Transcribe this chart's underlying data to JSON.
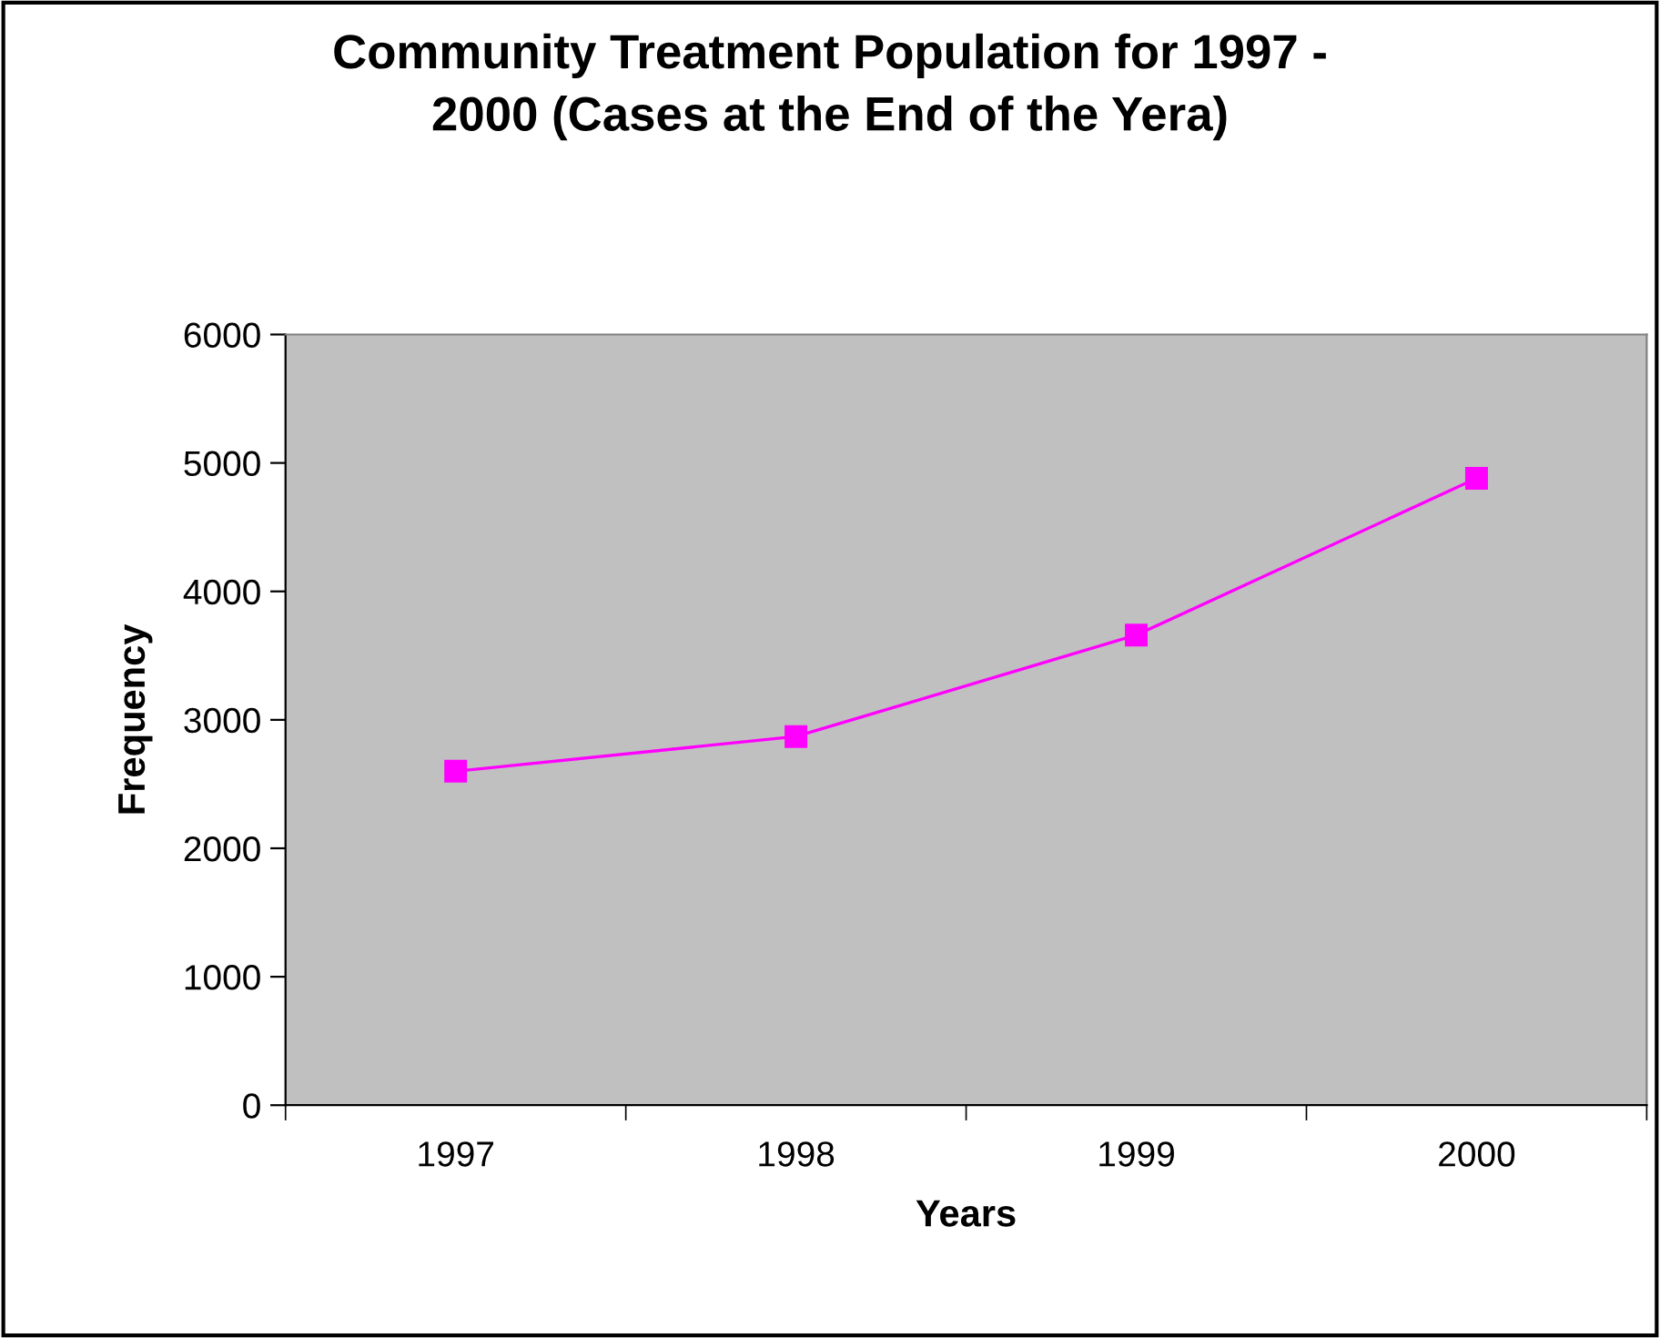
{
  "chart_data": {
    "type": "line",
    "title": "Community Treatment Population for 1997 -\n2000 (Cases at the End of the Yera)",
    "xlabel": "Years",
    "ylabel": "Frequency",
    "categories": [
      "1997",
      "1998",
      "1999",
      "2000"
    ],
    "series": [
      {
        "color": "#ff00ff",
        "values": [
          2600,
          2870,
          3660,
          4880
        ]
      }
    ],
    "ylim": [
      0,
      6000
    ],
    "yticks": [
      0,
      1000,
      2000,
      3000,
      4000,
      5000,
      6000
    ],
    "grid": false,
    "legend": false,
    "marker": "square",
    "line_style": "solid"
  }
}
